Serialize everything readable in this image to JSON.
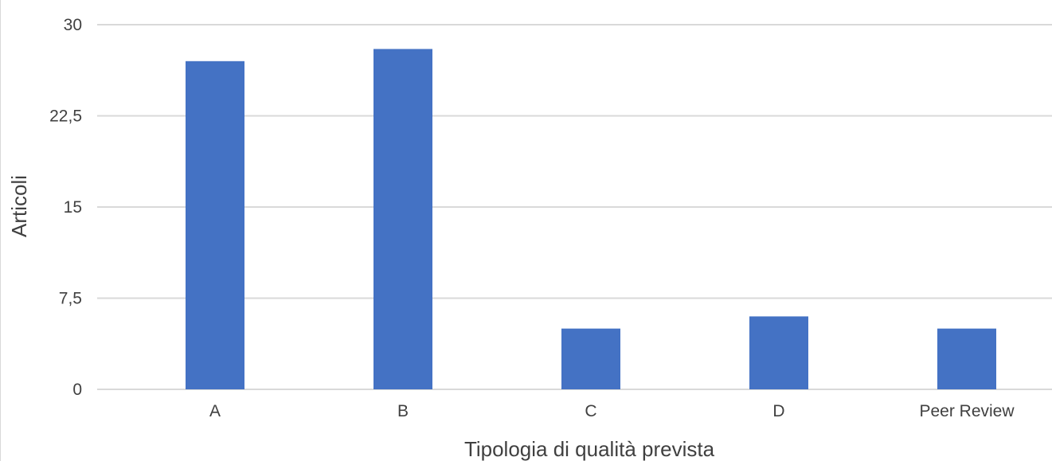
{
  "chart_data": {
    "type": "bar",
    "title": "",
    "xlabel": "Tipologia di qualità prevista",
    "ylabel": "Articoli",
    "categories": [
      "A",
      "B",
      "C",
      "D",
      "Peer Review"
    ],
    "values": [
      27,
      28,
      5,
      6,
      5
    ],
    "ylim": [
      0,
      30
    ],
    "yticks": [
      0,
      7.5,
      15,
      22.5,
      30
    ],
    "ytick_labels": [
      "0",
      "7,5",
      "15",
      "22,5",
      "30"
    ],
    "grid": true,
    "legend": "none",
    "bar_color": "#4472c4",
    "grid_color": "#d9d9d9",
    "axis_color": "#d9d9d9",
    "text_color": "#404040"
  }
}
